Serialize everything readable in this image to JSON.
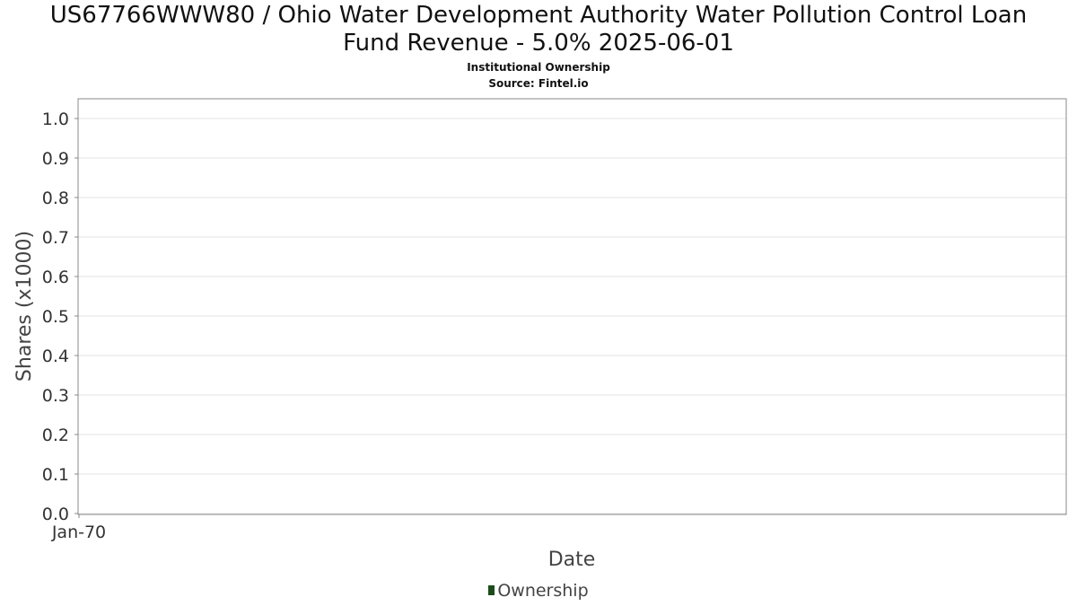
{
  "chart_data": {
    "type": "area",
    "title": "US67766WWW80 / Ohio Water Development Authority Water Pollution Control Loan\nFund Revenue - 5.0% 2025-06-01",
    "subtitle": "Institutional Ownership",
    "source": "Source: Fintel.io",
    "xlabel": "Date",
    "ylabel": "Shares (x1000)",
    "ylim": [
      0,
      1
    ],
    "y_ticks": [
      "0.0",
      "0.1",
      "0.2",
      "0.3",
      "0.4",
      "0.5",
      "0.6",
      "0.7",
      "0.8",
      "0.9",
      "1.0"
    ],
    "x_ticks": [
      "Jan-70"
    ],
    "grid": true,
    "legend_position": "bottom",
    "series": [
      {
        "name": "Ownership",
        "color": "#1b4d1b",
        "x": [],
        "values": []
      }
    ]
  }
}
